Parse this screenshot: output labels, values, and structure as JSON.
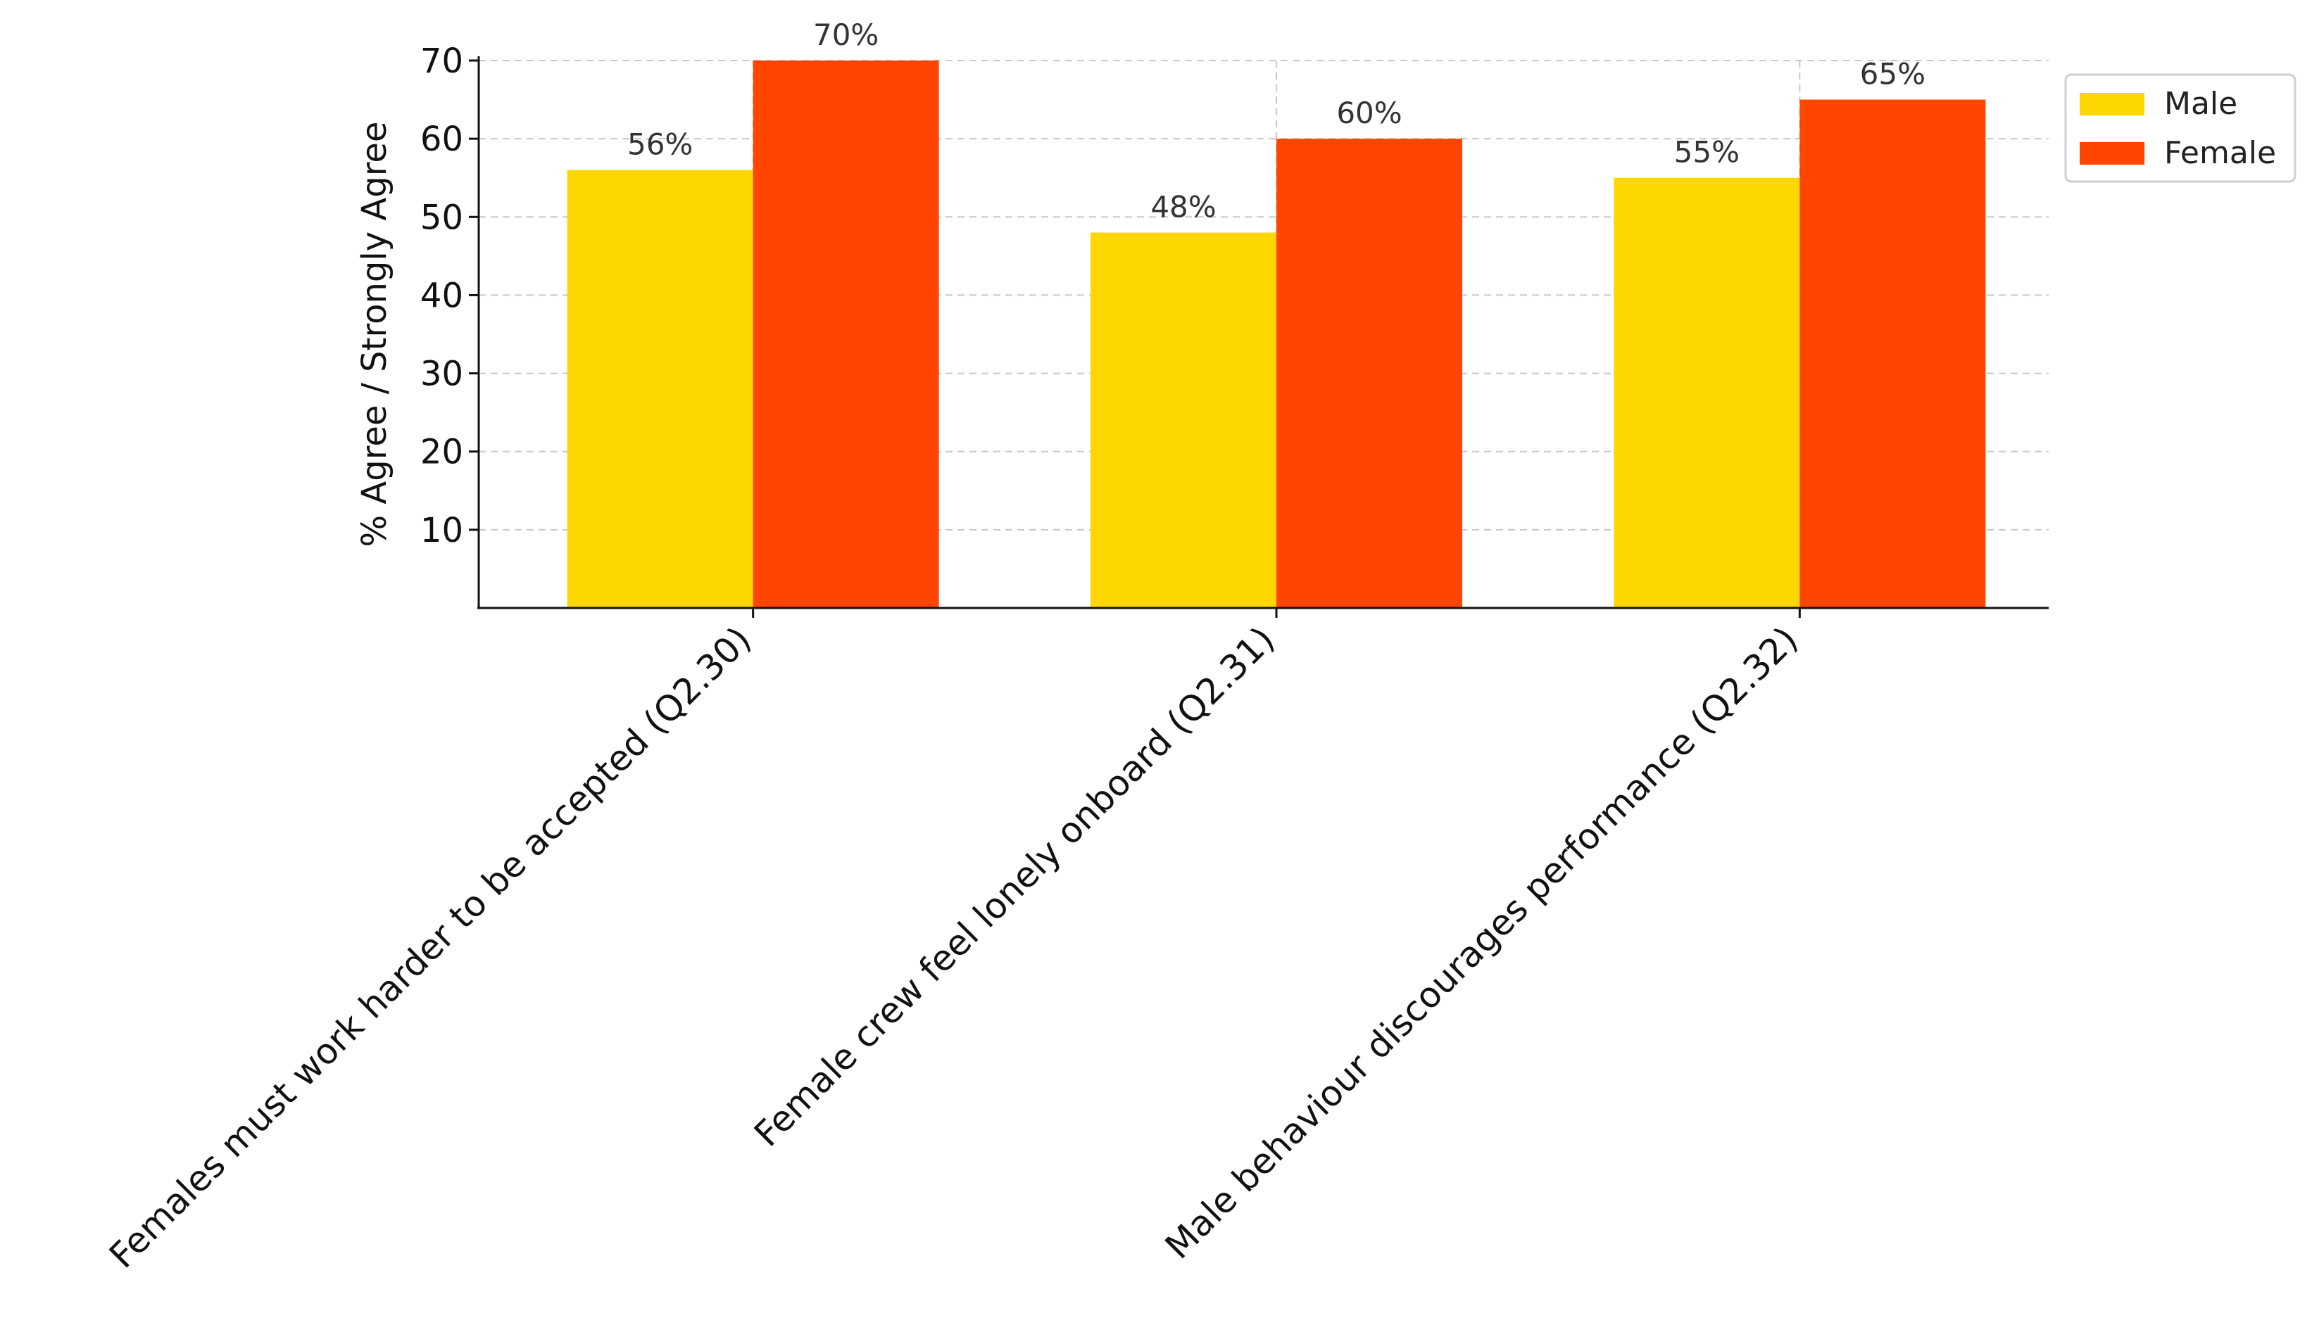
{
  "chart_data": {
    "type": "bar",
    "categories": [
      "Females must work harder to be accepted (Q2.30)",
      "Female crew feel lonely onboard (Q2.31)",
      "Male behaviour discourages performance (Q2.32)"
    ],
    "series": [
      {
        "name": "Male",
        "values": [
          56,
          48,
          55
        ],
        "labels": [
          "56%",
          "48%",
          "55%"
        ],
        "color": "#FFD700"
      },
      {
        "name": "Female",
        "values": [
          70,
          60,
          65
        ],
        "labels": [
          "70%",
          "60%",
          "65%"
        ],
        "color": "#FF4500"
      }
    ],
    "ylabel": "% Agree / Strongly Agree",
    "xlabel": "",
    "ylim": [
      0,
      70
    ],
    "yticks": [
      10,
      20,
      30,
      40,
      50,
      60,
      70
    ],
    "grid": true,
    "legend_position": "top-right"
  }
}
